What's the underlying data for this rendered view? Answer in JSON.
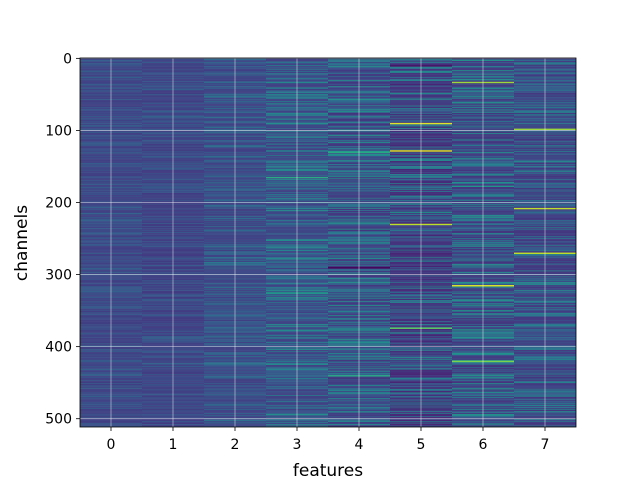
{
  "chart_data": {
    "type": "heatmap",
    "title": "",
    "xlabel": "features",
    "ylabel": "channels",
    "x_categories": [
      0,
      1,
      2,
      3,
      4,
      5,
      6,
      7
    ],
    "xlim": [
      -0.5,
      7.5
    ],
    "ylim": [
      511.5,
      -0.5
    ],
    "y_inverted": true,
    "n_rows": 512,
    "x_ticks": [
      0,
      1,
      2,
      3,
      4,
      5,
      6,
      7
    ],
    "y_ticks": [
      0,
      100,
      200,
      300,
      400,
      500
    ],
    "grid": true,
    "colormap": "viridis",
    "value_range": [
      0,
      1
    ],
    "column_baseline": [
      0.22,
      0.21,
      0.24,
      0.27,
      0.25,
      0.2,
      0.25,
      0.24
    ],
    "column_spread": [
      0.06,
      0.06,
      0.09,
      0.14,
      0.16,
      0.17,
      0.17,
      0.14
    ],
    "bright_rows": [
      {
        "x": 5,
        "y": 90,
        "value": 0.95
      },
      {
        "x": 5,
        "y": 128,
        "value": 0.95
      },
      {
        "x": 5,
        "y": 230,
        "value": 0.9
      },
      {
        "x": 5,
        "y": 374,
        "value": 0.75
      },
      {
        "x": 6,
        "y": 33,
        "value": 0.85
      },
      {
        "x": 6,
        "y": 315,
        "value": 0.95
      },
      {
        "x": 6,
        "y": 420,
        "value": 0.8
      },
      {
        "x": 7,
        "y": 98,
        "value": 0.85
      },
      {
        "x": 7,
        "y": 208,
        "value": 0.9
      },
      {
        "x": 7,
        "y": 270,
        "value": 0.9
      },
      {
        "x": 4,
        "y": 130,
        "value": 0.6
      },
      {
        "x": 4,
        "y": 440,
        "value": 0.6
      },
      {
        "x": 3,
        "y": 165,
        "value": 0.6
      },
      {
        "x": 3,
        "y": 325,
        "value": 0.55
      }
    ],
    "dark_rows": [
      {
        "x": 4,
        "y": 290,
        "value": 0.02
      },
      {
        "x": 5,
        "y": 10,
        "value": 0.05
      }
    ]
  }
}
